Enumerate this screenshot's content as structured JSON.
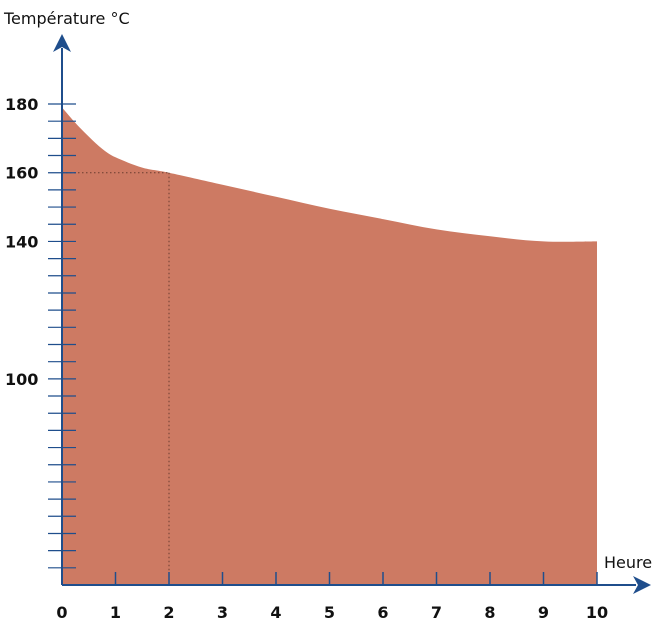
{
  "chart_data": {
    "type": "area",
    "ylabel": "Température °C",
    "xlabel": "Heure",
    "x": [
      0,
      0.25,
      0.5,
      0.75,
      1,
      1.5,
      2,
      3,
      4,
      5,
      6,
      7,
      8,
      9,
      10
    ],
    "y": [
      179,
      174.5,
      170.5,
      167,
      164.5,
      161.5,
      160,
      156.5,
      153,
      149.5,
      146.5,
      143.5,
      141.5,
      140,
      140
    ],
    "xlim": [
      0,
      10
    ],
    "ylim": [
      40,
      180
    ],
    "x_ticks": [
      0,
      1,
      2,
      3,
      4,
      5,
      6,
      7,
      8,
      9,
      10
    ],
    "x_tick_labels": [
      "0",
      "1",
      "2",
      "3",
      "4",
      "5",
      "6",
      "7",
      "8",
      "9",
      "10"
    ],
    "y_ticks": [
      45,
      50,
      55,
      60,
      65,
      70,
      75,
      80,
      85,
      90,
      95,
      100,
      105,
      110,
      115,
      120,
      125,
      130,
      135,
      140,
      145,
      150,
      155,
      160,
      165,
      170,
      175,
      180
    ],
    "y_tick_labels": [
      {
        "value": 100,
        "label": "100"
      },
      {
        "value": 140,
        "label": "140"
      },
      {
        "value": 160,
        "label": "160"
      },
      {
        "value": 180,
        "label": "180"
      }
    ],
    "reference_point": {
      "x": 2,
      "y": 160
    },
    "grid": false,
    "colors": {
      "fill": "#cd7a63",
      "axis": "#1f4e8c"
    }
  }
}
